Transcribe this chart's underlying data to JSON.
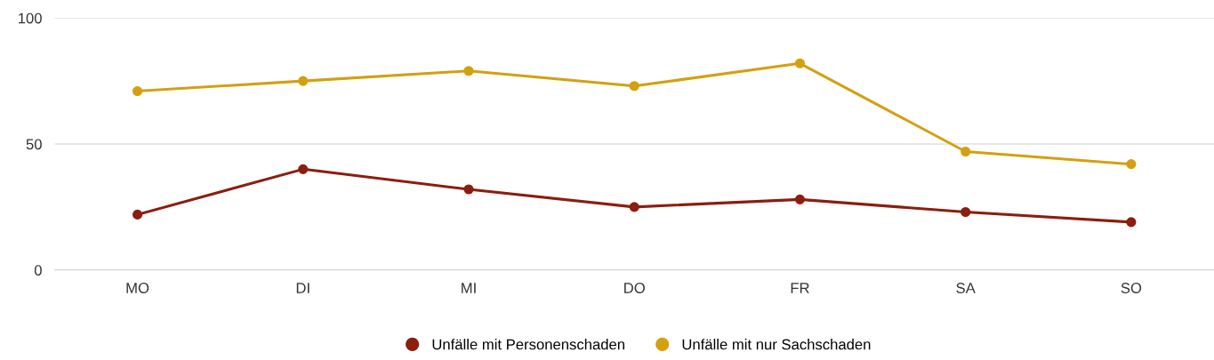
{
  "chart_data": {
    "type": "line",
    "categories": [
      "MO",
      "DI",
      "MI",
      "DO",
      "FR",
      "SA",
      "SO"
    ],
    "series": [
      {
        "name": "Unfälle mit Personenschaden",
        "color": "#8b1e0f",
        "values": [
          22,
          40,
          32,
          25,
          28,
          23,
          19
        ]
      },
      {
        "name": "Unfälle mit nur Sachschaden",
        "color": "#d4a00f",
        "values": [
          71,
          75,
          79,
          73,
          82,
          47,
          42
        ]
      }
    ],
    "ylim": [
      0,
      100
    ],
    "yticks": [
      0,
      50,
      100
    ],
    "grid": "y",
    "legend": "bottom",
    "marker": "circle",
    "line_style": "solid"
  }
}
